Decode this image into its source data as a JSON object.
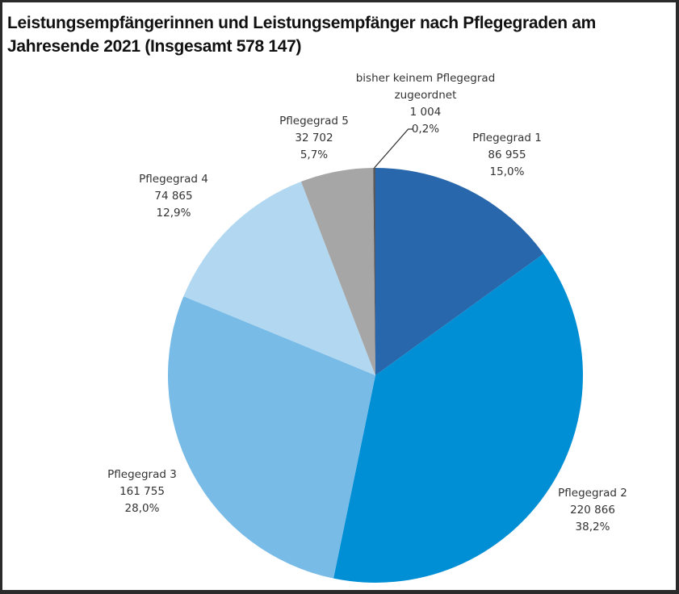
{
  "chart_data": {
    "type": "pie",
    "title_lines": [
      "Leistungsempfängerinnen und Leistungsempfänger nach Pflegegraden am",
      "Jahresende 2021 (Insgesamt 578 147)"
    ],
    "total": 578147,
    "total_label": "578 147",
    "start": "12 o'clock",
    "direction": "clockwise",
    "slices": [
      {
        "label": "Pflegegrad 1",
        "label_lines": [
          "Pflegegrad 1"
        ],
        "value": 86955,
        "value_label": "86 955",
        "percent": 15.0,
        "percent_label": "15,0%",
        "color": "#2867ab"
      },
      {
        "label": "Pflegegrad 2",
        "label_lines": [
          "Pflegegrad 2"
        ],
        "value": 220866,
        "value_label": "220 866",
        "percent": 38.2,
        "percent_label": "38,2%",
        "color": "#008fd5"
      },
      {
        "label": "Pflegegrad 3",
        "label_lines": [
          "Pflegegrad 3"
        ],
        "value": 161755,
        "value_label": "161 755",
        "percent": 28.0,
        "percent_label": "28,0%",
        "color": "#78bbe7"
      },
      {
        "label": "Pflegegrad 4",
        "label_lines": [
          "Pflegegrad 4"
        ],
        "value": 74865,
        "value_label": "74 865",
        "percent": 12.9,
        "percent_label": "12,9%",
        "color": "#b2d8f1"
      },
      {
        "label": "Pflegegrad 5",
        "label_lines": [
          "Pflegegrad 5"
        ],
        "value": 32702,
        "value_label": "32 702",
        "percent": 5.7,
        "percent_label": "5,7%",
        "color": "#a6a6a6"
      },
      {
        "label": "bisher keinem Pflegegrad zugeordnet",
        "label_lines": [
          "bisher keinem Pflegegrad",
          "zugeordnet"
        ],
        "value": 1004,
        "value_label": "1 004",
        "percent": 0.2,
        "percent_label": "0,2%",
        "color": "#595959",
        "leader_line": true
      }
    ]
  }
}
